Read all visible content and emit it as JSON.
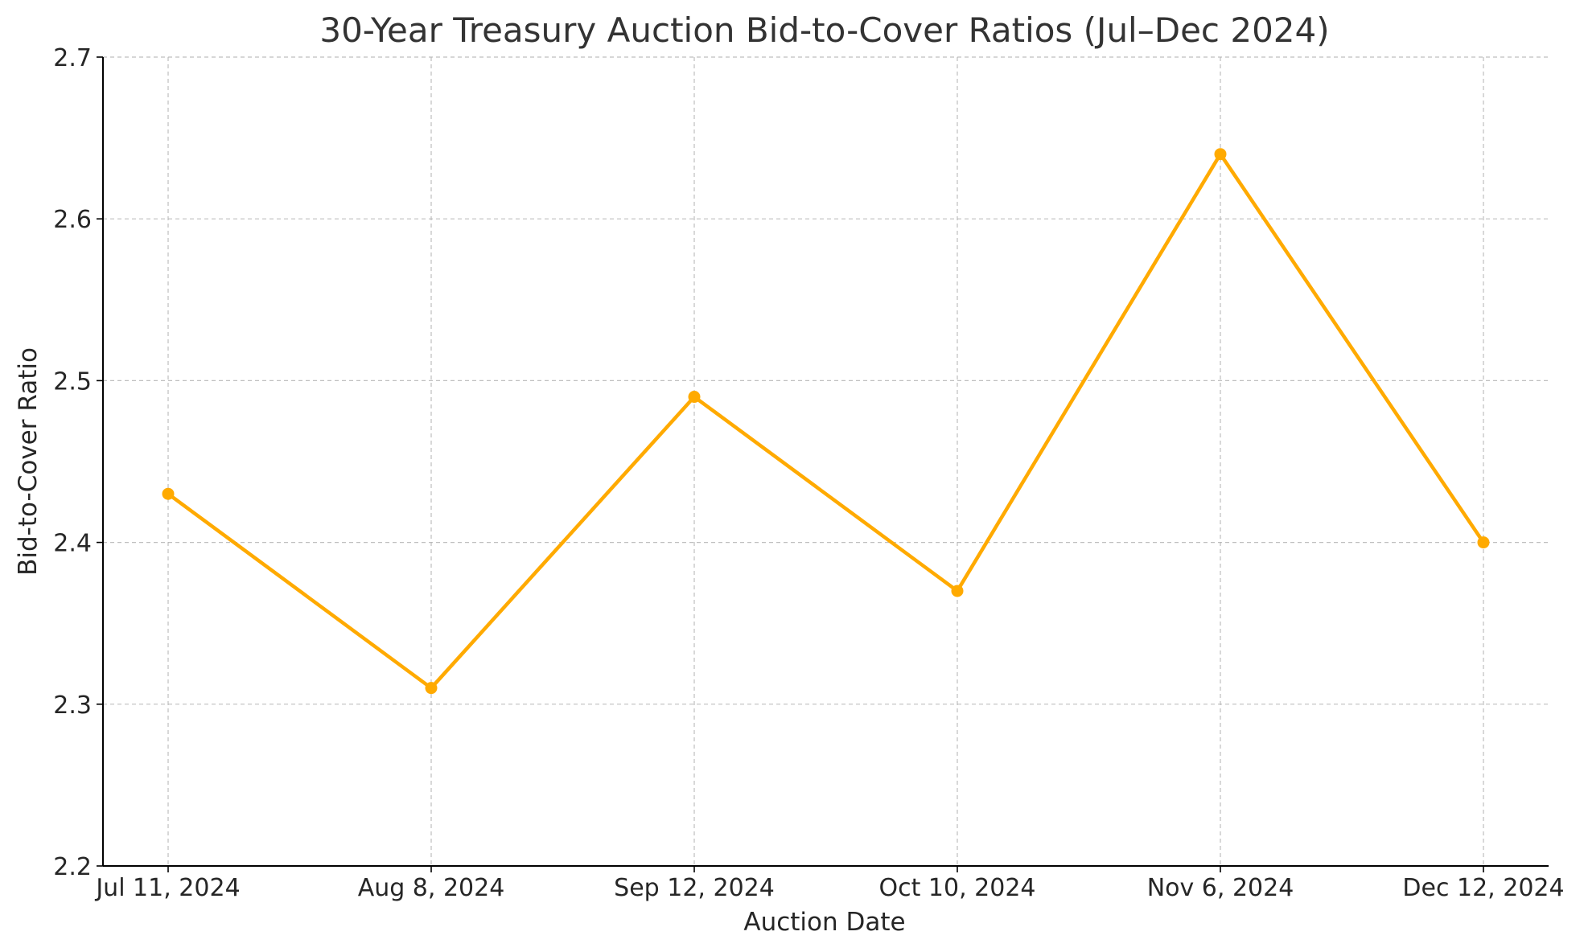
{
  "chart_data": {
    "type": "line",
    "title": "30-Year Treasury Auction Bid-to-Cover Ratios (Jul–Dec 2024)",
    "xlabel": "Auction Date",
    "ylabel": "Bid-to-Cover Ratio",
    "categories": [
      "Jul 11, 2024",
      "Aug 8, 2024",
      "Sep 12, 2024",
      "Oct 10, 2024",
      "Nov 6, 2024",
      "Dec 12, 2024"
    ],
    "series": [
      {
        "values": [
          2.43,
          2.31,
          2.49,
          2.37,
          2.64,
          2.4
        ],
        "color": "#FFAA00",
        "marker": "circle"
      }
    ],
    "ylim": [
      2.2,
      2.7
    ],
    "yticks": [
      "2.2",
      "2.3",
      "2.4",
      "2.5",
      "2.6",
      "2.7"
    ],
    "grid": true,
    "legend": "none"
  }
}
